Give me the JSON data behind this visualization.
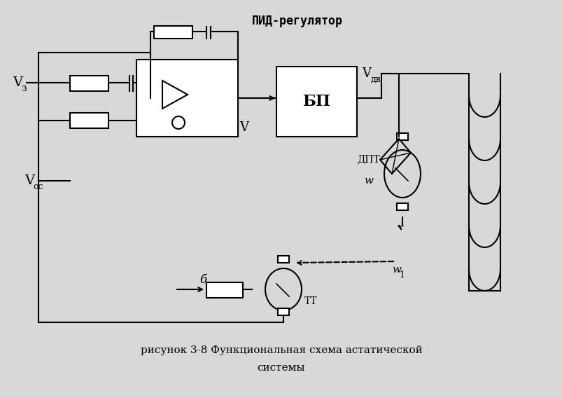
{
  "bg_color": "#d8d8d8",
  "pid_label": "ПИД-регулятор",
  "vz_label": "V",
  "vz_sub": "з",
  "voc_label": "V",
  "voc_sub": "ос",
  "v_label": "V",
  "vdv_label": "V",
  "vdv_sub": "дв",
  "bp_label": "БП",
  "dpt_label": "ДПТ",
  "w_label": "w",
  "w1_label": "w",
  "w1_sub": "1",
  "tt_label": "ТТ",
  "b_label": "б"
}
